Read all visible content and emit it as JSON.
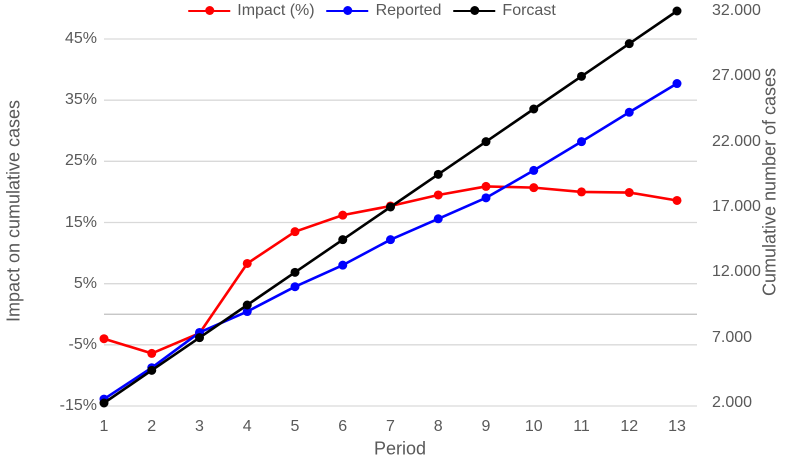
{
  "chart_data": {
    "type": "line",
    "title": "",
    "xlabel": "Period",
    "x_categories": [
      "1",
      "2",
      "3",
      "4",
      "5",
      "6",
      "7",
      "8",
      "9",
      "10",
      "11",
      "12",
      "13"
    ],
    "legend_position": "top",
    "grid": true,
    "left_axis": {
      "title": "Impact on cumulative cases",
      "unit": "%",
      "range": [
        -15,
        45
      ],
      "ticks": [
        {
          "label": "45%",
          "value": 45
        },
        {
          "label": "35%",
          "value": 35
        },
        {
          "label": "25%",
          "value": 25
        },
        {
          "label": "15%",
          "value": 15
        },
        {
          "label": "5%",
          "value": 5
        },
        {
          "label": "-5%",
          "value": -5
        },
        {
          "label": "-15%",
          "value": -15
        }
      ]
    },
    "right_axis": {
      "title": "Cumulative number of cases",
      "range": [
        2000,
        32000
      ],
      "ticks": [
        {
          "label": "32.000",
          "value": 32000
        },
        {
          "label": "27.000",
          "value": 27000
        },
        {
          "label": "22.000",
          "value": 22000
        },
        {
          "label": "17.000",
          "value": 17000
        },
        {
          "label": "12.000",
          "value": 12000
        },
        {
          "label": "7.000",
          "value": 7000
        },
        {
          "label": "2.000",
          "value": 2000
        }
      ]
    },
    "series": [
      {
        "name": "Impact (%)",
        "axis": "left",
        "color": "#FF0000",
        "marker": "circle",
        "values": [
          -4.0,
          -6.4,
          -3.1,
          8.3,
          13.5,
          16.2,
          17.7,
          19.5,
          20.9,
          20.7,
          20.0,
          19.9,
          18.6
        ]
      },
      {
        "name": "Reported",
        "axis": "right",
        "color": "#0000FF",
        "marker": "circle",
        "values": [
          2300,
          4700,
          7400,
          9000,
          10900,
          12550,
          14500,
          16100,
          17700,
          19800,
          22000,
          24250,
          26450
        ]
      },
      {
        "name": "Forcast",
        "axis": "right",
        "color": "#000000",
        "marker": "circle",
        "values": [
          2000,
          4500,
          7000,
          9500,
          12000,
          14500,
          17000,
          19500,
          22000,
          24500,
          27000,
          29500,
          32000
        ]
      }
    ]
  },
  "colors": {
    "background": "#FFFFFF",
    "gridline": "#D9D9D9",
    "zero_axis_line": "#BFBFBF",
    "tick_text": "#595959",
    "axis_title_text": "#595959"
  }
}
